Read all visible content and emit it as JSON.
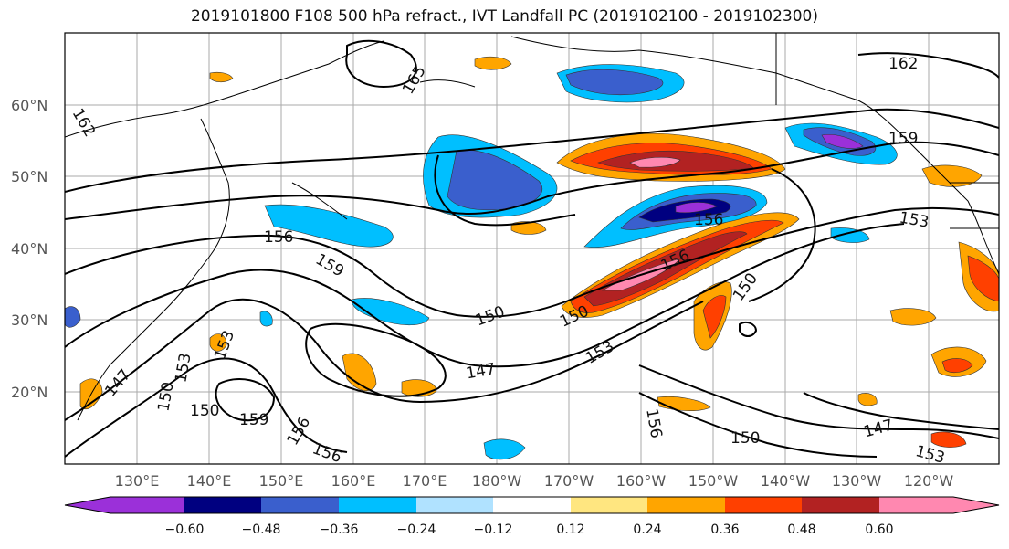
{
  "title": "2019101800 F108 500 hPa refract., IVT Landfall PC (2019102100 - 2019102300)",
  "lat_ticks": [
    "60°N",
    "50°N",
    "40°N",
    "30°N",
    "20°N"
  ],
  "lon_ticks": [
    "130°E",
    "140°E",
    "150°E",
    "160°E",
    "170°E",
    "180°W",
    "170°W",
    "160°W",
    "150°W",
    "140°W",
    "130°W",
    "120°W"
  ],
  "colorbar": {
    "ticks": [
      "−0.60",
      "−0.48",
      "−0.36",
      "−0.24",
      "−0.12",
      "0.12",
      "0.24",
      "0.36",
      "0.48",
      "0.60"
    ],
    "colors": [
      "#9b30d9",
      "#000080",
      "#3a5fcd",
      "#00bfff",
      "#b0e2ff",
      "#ffffff",
      "#ffe680",
      "#ffa500",
      "#ff4000",
      "#b22222",
      "#ff88b0"
    ]
  },
  "contour_labels": [
    "165",
    "162",
    "162",
    "159",
    "159",
    "159",
    "156",
    "156",
    "156",
    "156",
    "156",
    "153",
    "153",
    "153",
    "153",
    "150",
    "150",
    "150",
    "150",
    "150",
    "150",
    "147",
    "147",
    "147",
    "156",
    "153"
  ],
  "colors": {
    "purple": "#9b30d9",
    "navy": "#000080",
    "royal": "#3a5fcd",
    "sky": "#00bfff",
    "pale": "#b0e2ff",
    "yellow": "#ffe680",
    "orange": "#ffa500",
    "red": "#ff4000",
    "darkred": "#b22222",
    "pink": "#ff88b0"
  }
}
